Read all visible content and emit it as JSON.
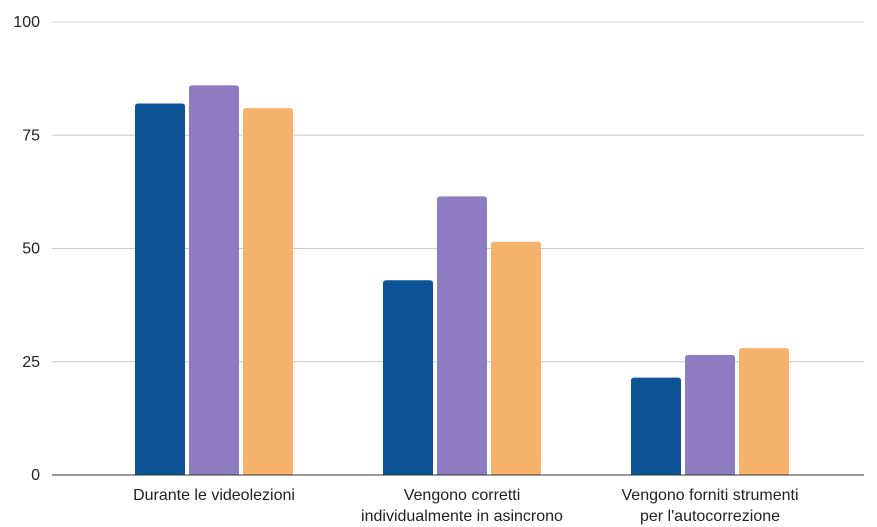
{
  "chart_data": {
    "type": "bar",
    "categories": [
      [
        "Durante le videolezioni"
      ],
      [
        "Vengono corretti",
        "individualmente in asincrono"
      ],
      [
        "Vengono forniti strumenti",
        "per l'autocorrezione"
      ]
    ],
    "series": [
      {
        "color": "#0b5394",
        "values": [
          82,
          43,
          21.5
        ]
      },
      {
        "color": "#8e7cc3",
        "values": [
          86,
          61.5,
          26.5
        ]
      },
      {
        "color": "#f6b26b",
        "values": [
          81,
          51.5,
          28
        ]
      }
    ],
    "ylim": [
      0,
      100
    ],
    "yticks": [
      0,
      25,
      50,
      75,
      100
    ],
    "grid": true,
    "legend": "none"
  }
}
